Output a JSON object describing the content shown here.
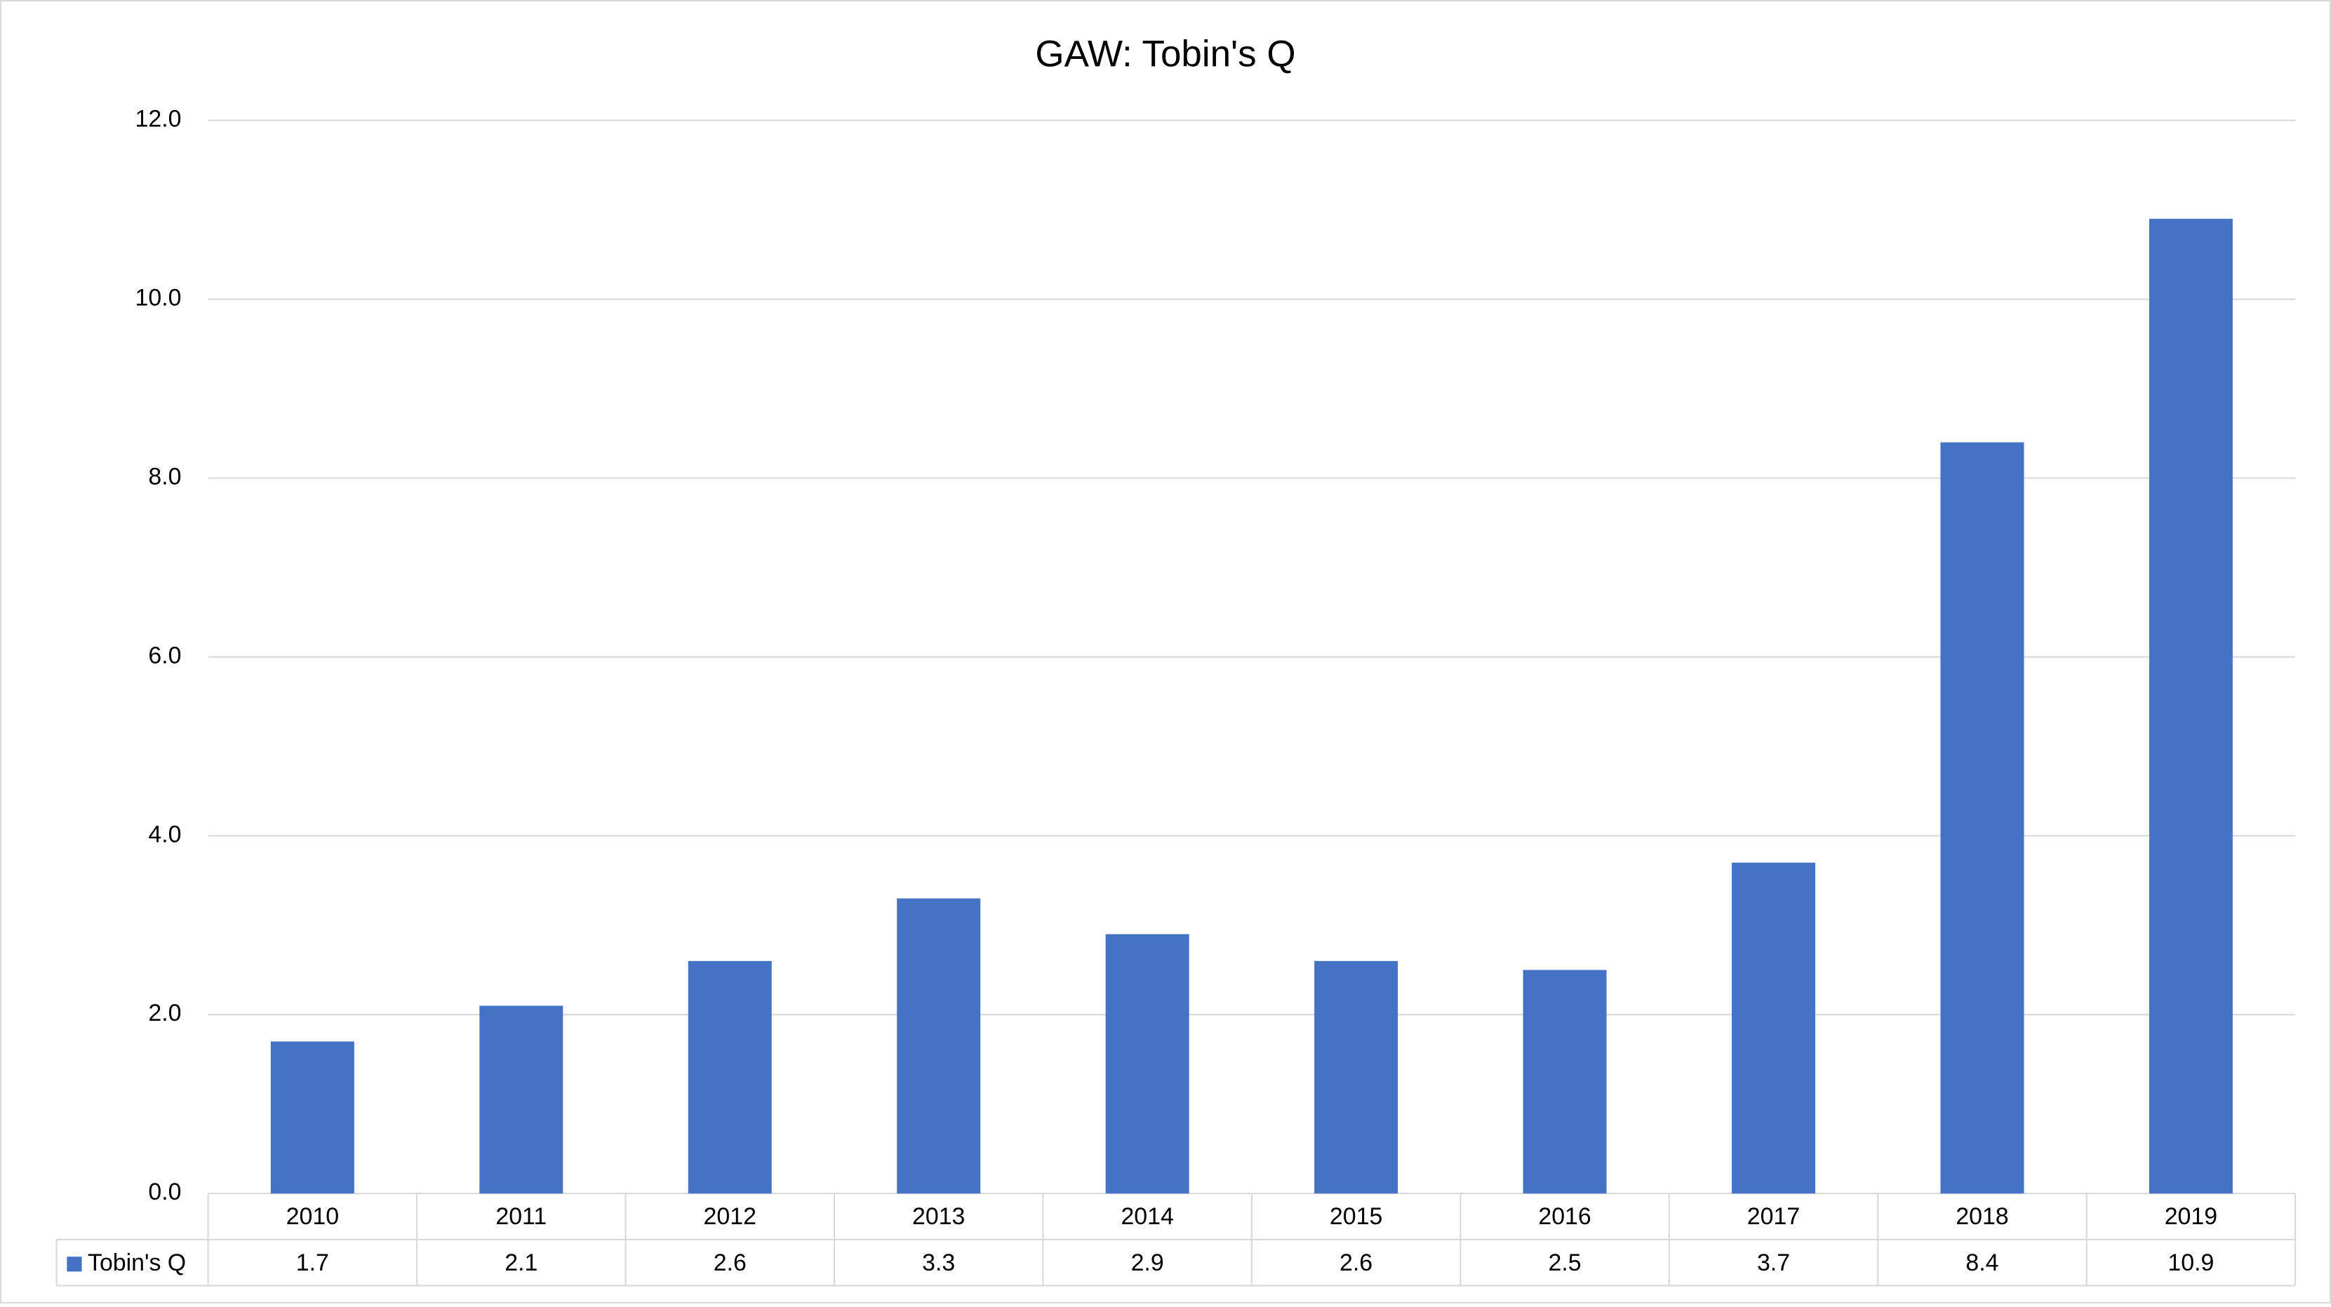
{
  "chart_data": {
    "type": "bar",
    "title": "GAW: Tobin's Q",
    "categories": [
      "2010",
      "2011",
      "2012",
      "2013",
      "2014",
      "2015",
      "2016",
      "2017",
      "2018",
      "2019"
    ],
    "series": [
      {
        "name": "Tobin's Q",
        "color": "#4472c4",
        "values": [
          1.7,
          2.1,
          2.6,
          3.3,
          2.9,
          2.6,
          2.5,
          3.7,
          8.4,
          10.9
        ]
      }
    ],
    "ylim": [
      0,
      12
    ],
    "yticks": [
      {
        "value": 0,
        "label": "0.0"
      },
      {
        "value": 2,
        "label": "2.0"
      },
      {
        "value": 4,
        "label": "4.0"
      },
      {
        "value": 6,
        "label": "6.0"
      },
      {
        "value": 8,
        "label": "8.0"
      },
      {
        "value": 10,
        "label": "10.0"
      },
      {
        "value": 12,
        "label": "12.0"
      }
    ],
    "grid": true,
    "data_table": true
  }
}
